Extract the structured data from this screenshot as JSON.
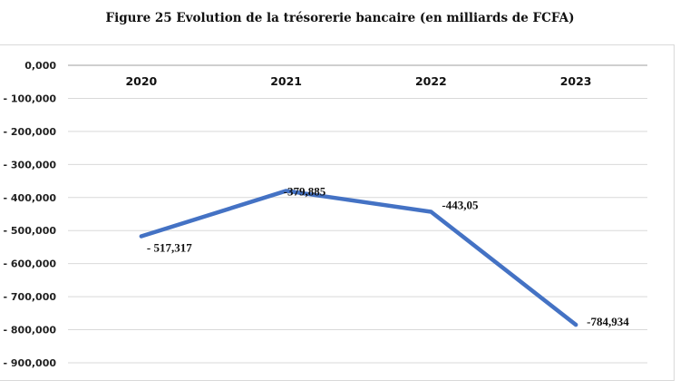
{
  "chart_data": {
    "type": "line",
    "title": "Figure 25 Evolution de la trésorerie bancaire (en milliards de FCFA)",
    "categories": [
      "2020",
      "2021",
      "2022",
      "2023"
    ],
    "series": [
      {
        "name": "Trésorerie bancaire",
        "values": [
          -517.317,
          -379.885,
          -443.05,
          -784.934
        ],
        "color": "#4472c4"
      }
    ],
    "data_labels": [
      "- 517,317",
      "-379,885",
      "-443,05",
      "-784,934"
    ],
    "yticks": [
      0,
      -100,
      -200,
      -300,
      -400,
      -500,
      -600,
      -700,
      -800,
      -900
    ],
    "ytick_labels": [
      "0,000",
      "- 100,000",
      "- 200,000",
      "- 300,000",
      "- 400,000",
      "- 500,000",
      "- 600,000",
      "- 700,000",
      "- 800,000",
      "- 900,000"
    ],
    "ylim": [
      -900,
      0
    ],
    "grid": true,
    "xlabel": "",
    "ylabel": ""
  }
}
